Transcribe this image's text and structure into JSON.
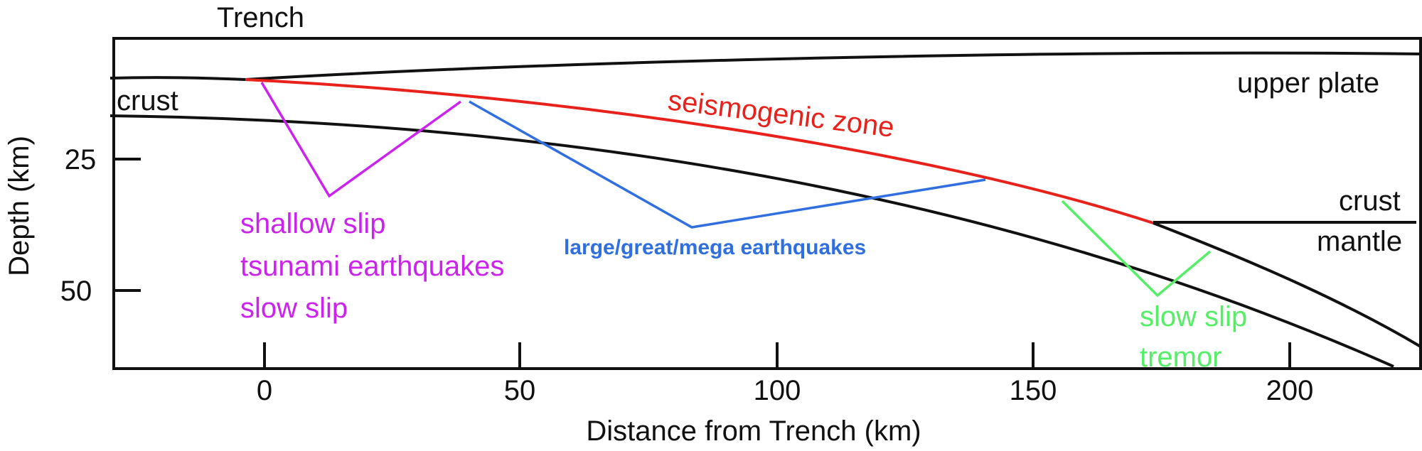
{
  "labels": {
    "trench": "Trench",
    "upper_plate": "upper plate",
    "crust_left": "crust",
    "crust_right": "crust",
    "mantle": "mantle",
    "seismogenic_zone": "seismogenic zone",
    "shallow": [
      "shallow slip",
      "tsunami earthquakes",
      "slow slip"
    ],
    "large": "large/great/mega earthquakes",
    "deep": [
      "slow slip",
      "tremor"
    ]
  },
  "axes": {
    "x_title": "Distance from Trench (km)",
    "y_title": "Depth (km)",
    "x_ticks": [
      "0",
      "50",
      "100",
      "150",
      "200"
    ],
    "y_ticks": [
      "25",
      "50"
    ]
  },
  "colors": {
    "frame": "#111111",
    "seismogenic": "#e8211b",
    "shallow": "#cc22ee",
    "large": "#2f6fe0",
    "deep": "#55ee66"
  }
}
